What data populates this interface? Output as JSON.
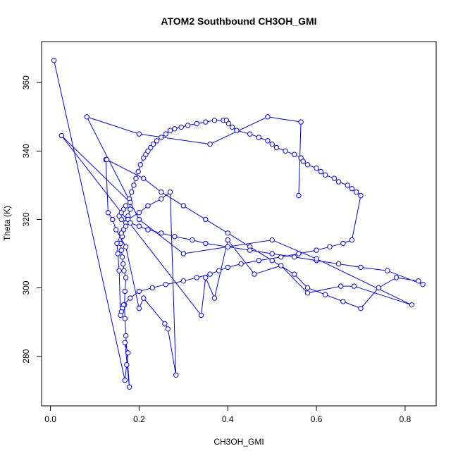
{
  "chart_data": {
    "type": "line",
    "title": "ATOM2 Southbound CH3OH_GMI",
    "xlabel": "CH3OH_GMI",
    "ylabel": "Theta (K)",
    "xlim": [
      -0.02,
      0.87
    ],
    "ylim": [
      265.5,
      372
    ],
    "xticks": [
      0.0,
      0.2,
      0.4,
      0.6,
      0.8
    ],
    "xtick_labels": [
      "0.0",
      "0.2",
      "0.4",
      "0.6",
      "0.8"
    ],
    "yticks": [
      280,
      300,
      320,
      340,
      360
    ],
    "ytick_labels": [
      "280",
      "300",
      "320",
      "340",
      "360"
    ],
    "grid": false,
    "legend": "none",
    "marker": "open-circle",
    "color": "#0000ff",
    "series": [
      {
        "x": [
          0.008,
          0.168,
          0.172,
          0.175,
          0.168,
          0.178,
          0.17,
          0.168,
          0.167,
          0.168,
          0.17,
          0.166,
          0.164,
          0.162,
          0.16,
          0.158,
          0.162,
          0.165,
          0.17,
          0.175,
          0.18,
          0.178,
          0.183,
          0.188,
          0.193,
          0.198,
          0.203,
          0.21,
          0.215,
          0.22,
          0.226,
          0.232,
          0.24,
          0.25,
          0.26,
          0.27,
          0.28,
          0.295,
          0.31,
          0.33,
          0.35,
          0.37,
          0.39,
          0.397,
          0.402,
          0.41,
          0.42,
          0.45,
          0.47,
          0.49,
          0.5,
          0.51,
          0.53,
          0.55,
          0.565,
          0.57,
          0.58,
          0.6,
          0.61,
          0.62,
          0.64,
          0.65,
          0.67,
          0.68,
          0.69,
          0.7,
          0.68,
          0.66,
          0.63,
          0.6,
          0.56,
          0.52,
          0.47,
          0.43,
          0.4,
          0.38,
          0.36,
          0.33,
          0.3,
          0.26,
          0.23,
          0.2,
          0.18,
          0.165,
          0.162,
          0.16,
          0.158,
          0.155,
          0.152,
          0.15,
          0.16,
          0.17,
          0.175,
          0.2,
          0.22,
          0.25,
          0.27,
          0.283,
          0.265,
          0.258,
          0.21,
          0.2,
          0.17,
          0.148,
          0.14,
          0.13,
          0.125,
          0.127,
          0.21,
          0.25,
          0.3,
          0.35,
          0.4,
          0.45,
          0.5,
          0.55,
          0.58,
          0.62,
          0.66,
          0.7,
          0.74,
          0.78,
          0.83,
          0.84,
          0.76,
          0.7,
          0.65,
          0.6,
          0.55,
          0.5,
          0.45,
          0.4,
          0.35,
          0.32,
          0.28,
          0.25,
          0.22,
          0.2,
          0.18,
          0.16,
          0.155,
          0.16,
          0.165,
          0.17,
          0.18,
          0.025,
          0.34,
          0.35,
          0.37,
          0.4,
          0.46,
          0.52,
          0.58,
          0.655,
          0.685,
          0.815,
          0.6,
          0.5,
          0.3,
          0.2,
          0.082,
          0.2,
          0.36,
          0.49,
          0.565,
          0.56
        ],
        "y": [
          366.5,
          273,
          277.5,
          281,
          284,
          271,
          286,
          291,
          295,
          299,
          303,
          305,
          307,
          309,
          311,
          313,
          315,
          317,
          319,
          321,
          323,
          326,
          328,
          330,
          332,
          334,
          336,
          338,
          339,
          340,
          341,
          342,
          343,
          344,
          345,
          346,
          346.5,
          347,
          347.5,
          348,
          348.5,
          349,
          349,
          349,
          348,
          347,
          346,
          345,
          344,
          343,
          342,
          341,
          340,
          339,
          338,
          337,
          336,
          335,
          334,
          333,
          332,
          331,
          330,
          329,
          328,
          327,
          314,
          313,
          312,
          311,
          310,
          309,
          308,
          307,
          306,
          305,
          304,
          303,
          302,
          301,
          300,
          299,
          297,
          295,
          294,
          293,
          292,
          305,
          310,
          313,
          316,
          318,
          320,
          322,
          324,
          326,
          328,
          274.5,
          288,
          289.5,
          297,
          294,
          312,
          317,
          320,
          322,
          337.5,
          337.5,
          332,
          328,
          324,
          320,
          316,
          312,
          308,
          304,
          300,
          298,
          296,
          294,
          300,
          303,
          302,
          301,
          305,
          306,
          307,
          308,
          309,
          310,
          311,
          312,
          313,
          314,
          315,
          316,
          317,
          318,
          319,
          320,
          321,
          322,
          323,
          324,
          325,
          344.5,
          292,
          303,
          297,
          314,
          304,
          306.5,
          298.5,
          300.5,
          300.5,
          295,
          308.5,
          314,
          310,
          320,
          350,
          345,
          342,
          350,
          348.5,
          327
        ]
      }
    ]
  }
}
